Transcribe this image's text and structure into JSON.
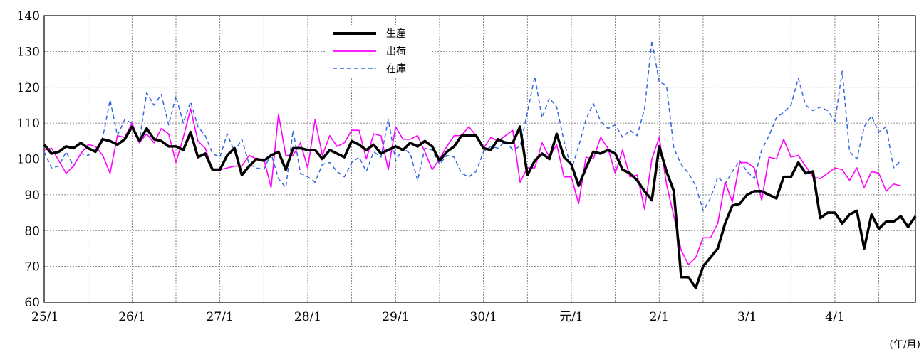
{
  "chart_data": {
    "type": "line",
    "title": "",
    "xlabel": "",
    "ylabel": "",
    "unit_label": "(年/月)",
    "ylim": [
      60,
      140
    ],
    "yticks": [
      60,
      70,
      80,
      90,
      100,
      110,
      120,
      130,
      140
    ],
    "x_tick_labels": [
      "25/1",
      "26/1",
      "27/1",
      "28/1",
      "29/1",
      "30/1",
      "元/1",
      "2/1",
      "3/1",
      "4/1"
    ],
    "grid": true,
    "legend_position": "top-center",
    "series": [
      {
        "name": "生産",
        "color": "#000000",
        "style": "solid-thick",
        "values": [
          104,
          101.5,
          102,
          103.5,
          103,
          104.5,
          103,
          102,
          105.5,
          105,
          104,
          105.5,
          109,
          105,
          108.5,
          105.5,
          105,
          103.5,
          103.5,
          102.5,
          107.5,
          100.5,
          101.5,
          97,
          97,
          101,
          103,
          95.5,
          98,
          100,
          99.5,
          101,
          102,
          97,
          103,
          103,
          102.5,
          102.5,
          100,
          102.5,
          101.5,
          100.5,
          105,
          104,
          102.5,
          104,
          101.5,
          102.5,
          103.5,
          102.5,
          104.5,
          103.5,
          105,
          103.5,
          99.5,
          102,
          103.5,
          106.5,
          106.5,
          106.5,
          103,
          102.5,
          105.5,
          104.5,
          104.5,
          109,
          95.5,
          99.5,
          101.5,
          100,
          107,
          100.5,
          98.5,
          92.5,
          97.5,
          102,
          101.5,
          102.5,
          101.5,
          97,
          96,
          94,
          91,
          88.5,
          103.5,
          96.5,
          91,
          67,
          67,
          64,
          70,
          72.5,
          75,
          82,
          87,
          87.5,
          90,
          91,
          91,
          90,
          89,
          95,
          95,
          99,
          96,
          96.5,
          83.5,
          85,
          85,
          82,
          84.5,
          85.5,
          75,
          84.5,
          80.5,
          82.5,
          82.5,
          84,
          81,
          84
        ]
      },
      {
        "name": "出荷",
        "color": "#ff00ff",
        "style": "solid",
        "values": [
          102.5,
          103,
          99.5,
          96,
          98,
          101.5,
          104,
          103.5,
          101,
          96,
          106.5,
          106,
          110,
          104.5,
          107,
          104.5,
          108.5,
          107,
          99,
          106,
          114,
          105,
          103,
          97,
          97,
          97.5,
          98,
          98,
          101,
          100,
          100,
          92,
          112.5,
          101,
          101,
          104.5,
          97.5,
          111,
          101,
          106.5,
          103.5,
          104.5,
          108,
          108,
          100,
          107,
          106.5,
          97,
          109,
          105.5,
          105.5,
          106.5,
          102,
          97,
          100,
          103.5,
          106.5,
          106.5,
          109,
          106.5,
          103,
          106,
          105,
          106.5,
          108,
          93.5,
          97.5,
          97.5,
          104.5,
          100.5,
          104,
          95,
          95,
          87.5,
          100.5,
          100,
          106,
          103,
          96,
          102.5,
          95,
          95.5,
          86,
          100,
          106,
          93,
          84,
          74.5,
          70.5,
          72.5,
          78,
          78,
          82,
          93.5,
          88,
          99,
          99,
          97.5,
          88.5,
          100.5,
          100,
          105.5,
          100.5,
          101,
          98,
          95,
          94.5,
          96,
          97.5,
          97,
          94,
          97.5,
          92,
          96.5,
          96,
          91,
          93,
          92.5
        ]
      },
      {
        "name": "在庫",
        "color": "#3366dd",
        "style": "dashed",
        "values": [
          102,
          97.5,
          98,
          102,
          98,
          101.5,
          101,
          102.5,
          106,
          116.5,
          106.5,
          111,
          110,
          105,
          118.5,
          115,
          118,
          109.5,
          117.5,
          110,
          116,
          109,
          106.5,
          101.5,
          100.5,
          107,
          102,
          105.5,
          98.5,
          97.5,
          97,
          101.5,
          94.5,
          92,
          108,
          96,
          95,
          93.5,
          98.5,
          99,
          96.5,
          95,
          99,
          100.5,
          96.5,
          102,
          100.5,
          111,
          99.5,
          103,
          101.5,
          94,
          103,
          102.5,
          98.5,
          101,
          100.5,
          96,
          95,
          96.5,
          102,
          103.5,
          103,
          105,
          102.5,
          103.5,
          113,
          123,
          111.5,
          117,
          114.5,
          105,
          97,
          103.5,
          111,
          115.5,
          110.5,
          108.5,
          109.5,
          106,
          108,
          106.5,
          114,
          133,
          121.5,
          120.5,
          103,
          98.5,
          96,
          92.5,
          85.5,
          89,
          95,
          93,
          96.5,
          99.5,
          96.5,
          94.5,
          102.5,
          106.5,
          111.5,
          113,
          115,
          122.5,
          115,
          113.5,
          114.5,
          113.5,
          110.5,
          124.5,
          102,
          100,
          109,
          112,
          107.5,
          109,
          97.5,
          99.5
        ]
      }
    ]
  }
}
